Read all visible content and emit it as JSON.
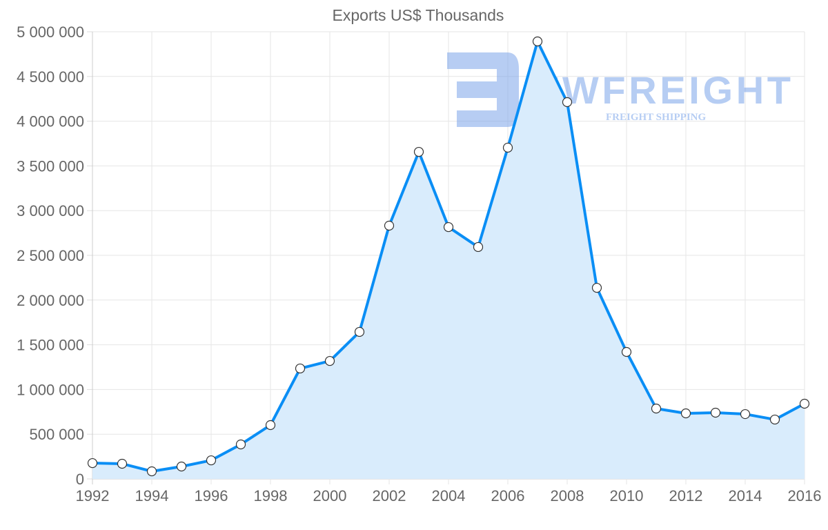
{
  "chart_data": {
    "type": "area",
    "title": "Exports US$ Thousands",
    "xlabel": "",
    "ylabel": "",
    "x": [
      1992,
      1993,
      1994,
      1995,
      1996,
      1997,
      1998,
      1999,
      2000,
      2001,
      2002,
      2003,
      2004,
      2005,
      2006,
      2007,
      2008,
      2009,
      2010,
      2011,
      2012,
      2013,
      2014,
      2015,
      2016
    ],
    "series": [
      {
        "name": "Exports US$ Thousands",
        "values": [
          177000,
          170000,
          85000,
          139000,
          208000,
          386000,
          602000,
          1235000,
          1319000,
          1644000,
          2832000,
          3657000,
          2816000,
          2593000,
          3704000,
          4892000,
          4213000,
          2137000,
          1420000,
          787000,
          733000,
          741000,
          725000,
          664000,
          841000
        ]
      }
    ],
    "xlim": [
      1992,
      2016
    ],
    "ylim": [
      0,
      5000000
    ],
    "x_ticks": [
      "1992",
      "1994",
      "1996",
      "1998",
      "2000",
      "2002",
      "2004",
      "2006",
      "2008",
      "2010",
      "2012",
      "2014",
      "2016"
    ],
    "y_ticks": [
      "0",
      "500 000",
      "1 000 000",
      "1 500 000",
      "2 000 000",
      "2 500 000",
      "3 000 000",
      "3 500 000",
      "4 000 000",
      "4 500 000",
      "5 000 000"
    ],
    "grid": true,
    "legend": "none",
    "colors": {
      "line": "#0a8ef5",
      "fill": "#d9ecfc",
      "grid": "#e6e6e6",
      "text": "#666666",
      "watermark": "#6f9ce8"
    }
  },
  "watermark": {
    "brand": "FWFREIGHT",
    "tagline": "FREIGHT SHIPPING"
  }
}
